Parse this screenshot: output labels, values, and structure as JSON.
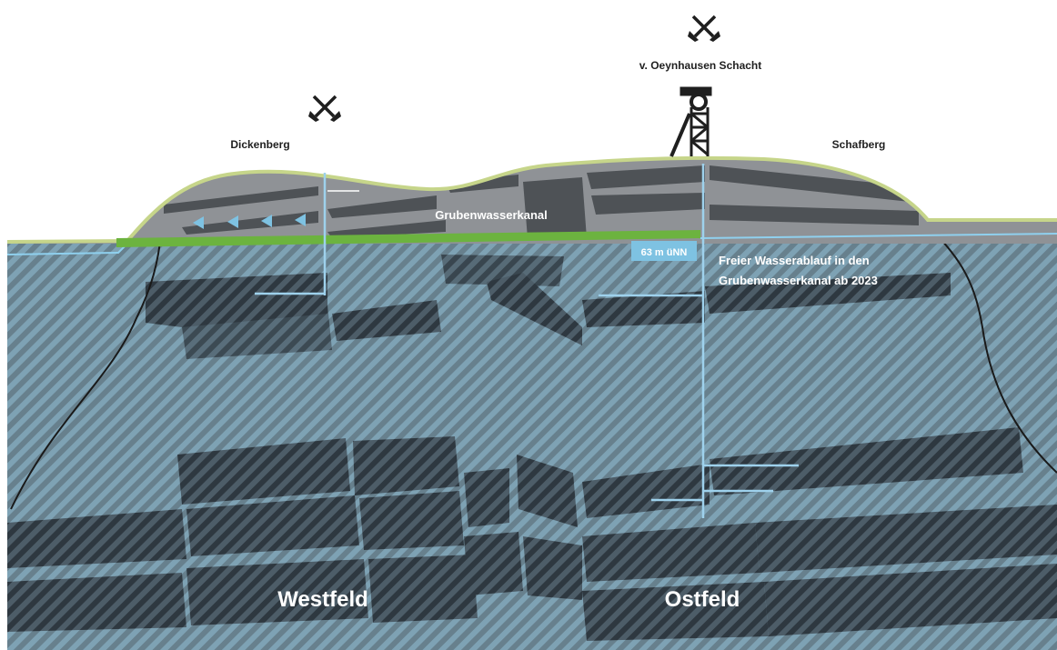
{
  "labels": {
    "dickenberg": "Dickenberg",
    "schafberg": "Schafberg",
    "schacht": "v. Oeynhausen Schacht",
    "kanal": "Grubenwasserkanal",
    "level": "63 m üNN",
    "ablauf_line1": "Freier Wasserablauf in den",
    "ablauf_line2": "Grubenwasserkanal ab 2023",
    "westfeld": "Westfeld",
    "ostfeld": "Ostfeld"
  },
  "icons": {
    "mine_symbol": "crossed-hammers-icon",
    "headframe": "headframe-icon",
    "flow_arrows": "flow-arrow-icon"
  },
  "colors": {
    "water": "#7aa3b6",
    "water_stripe": "#5d6b74",
    "rock": "#8c8f93",
    "rock_stripe": "#4a4d51",
    "seam": "#3f454b",
    "surface": "#c6d58a",
    "canal": "#6cb33f",
    "water_line": "#8fd0ee",
    "label_box": "#7ec2e2"
  }
}
